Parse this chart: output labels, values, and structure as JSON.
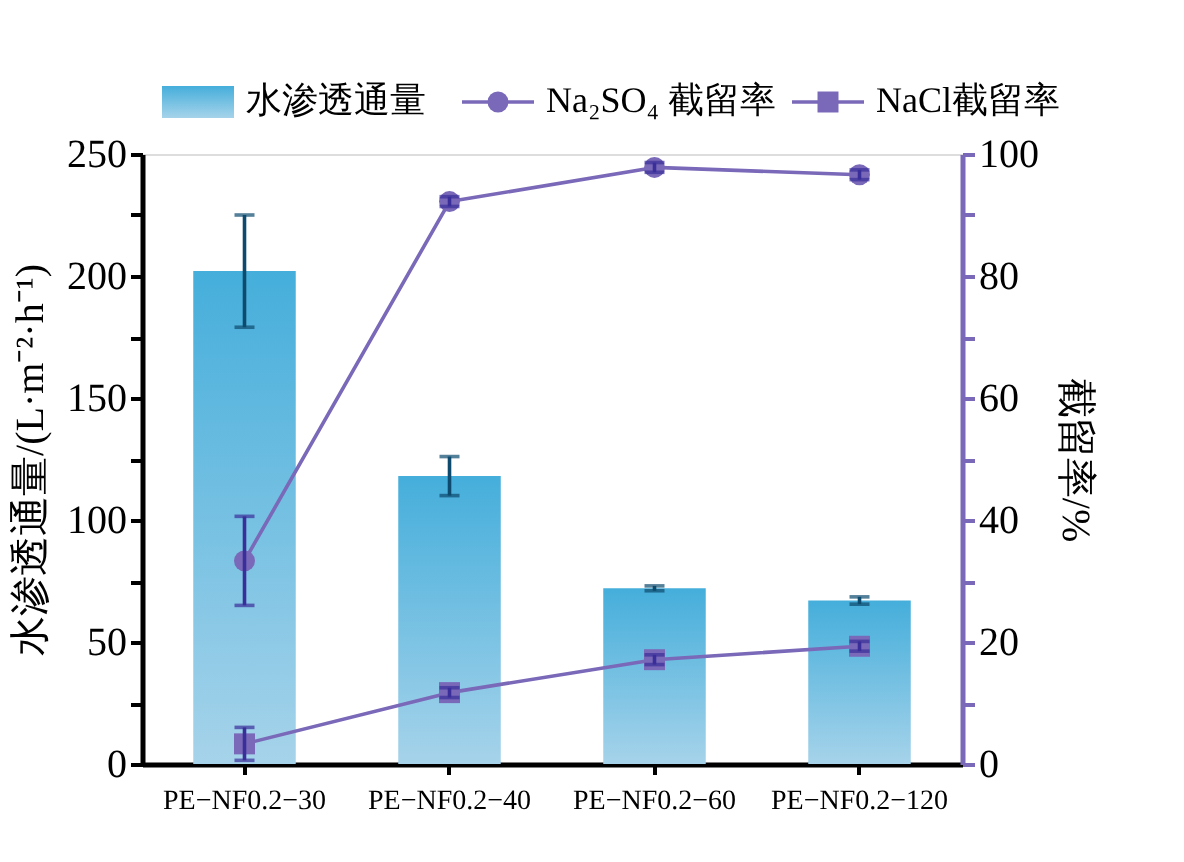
{
  "chart_data": {
    "type": "bar",
    "xlabel": null,
    "ylabel": "水渗透通量/(L·m⁻²·h⁻¹)",
    "y2label": "截留率/%",
    "categories": [
      "PE−NF0.2−30",
      "PE−NF0.2−40",
      "PE−NF0.2−60",
      "PE−NF0.2−120"
    ],
    "series": [
      {
        "name": "水渗透通量",
        "axis": "y",
        "color": "#45aedb",
        "values": [
          202,
          118,
          72,
          67
        ],
        "errors": [
          23,
          8,
          1,
          1.5
        ]
      },
      {
        "name": "Na₂SO₄ 截留率",
        "type": "line",
        "axis": "y2",
        "marker": "circle",
        "color": "#7a68b8",
        "values": [
          33.3,
          92.2,
          97.8,
          96.6
        ],
        "errors": [
          7.3,
          0.8,
          0.8,
          0.8
        ]
      },
      {
        "name": "NaCl截留率",
        "type": "line",
        "axis": "y2",
        "marker": "square",
        "color": "#7a68b8",
        "values": [
          3.3,
          11.7,
          17.1,
          19.3
        ],
        "errors": [
          2.7,
          0.8,
          0.8,
          0.8
        ]
      }
    ],
    "ylim": [
      0,
      250
    ],
    "yticks": [
      0,
      {
        "value": 25,
        "label": null
      },
      50,
      {
        "value": 75,
        "label": null
      },
      100,
      {
        "value": 125,
        "label": null
      },
      150,
      {
        "value": 175,
        "label": null
      },
      200,
      {
        "value": 225,
        "label": null
      },
      250
    ],
    "y2lim": [
      0,
      100
    ],
    "y2ticks": [
      0,
      {
        "value": 10,
        "label": null
      },
      20,
      {
        "value": 30,
        "label": null
      },
      40,
      {
        "value": 50,
        "label": null
      },
      60,
      {
        "value": 70,
        "label": null
      },
      80,
      {
        "value": 90,
        "label": null
      },
      100
    ],
    "grid": false,
    "legend": "top",
    "line_style": "solid"
  }
}
